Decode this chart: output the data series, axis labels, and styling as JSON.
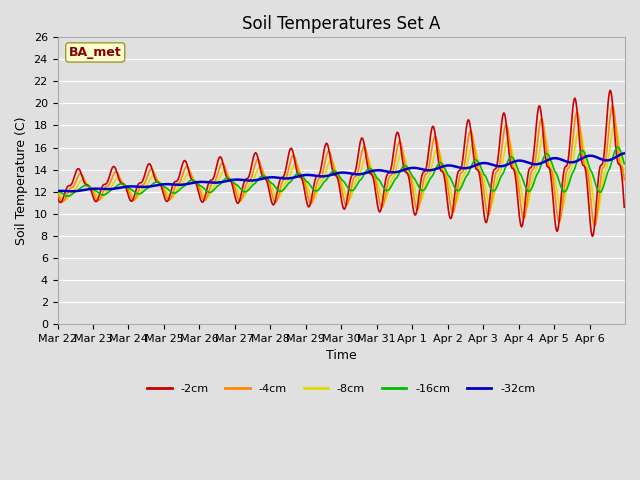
{
  "title": "Soil Temperatures Set A",
  "xlabel": "Time",
  "ylabel": "Soil Temperature (C)",
  "ylim": [
    0,
    26
  ],
  "ba_met_label": "BA_met",
  "legend_entries": [
    "-2cm",
    "-4cm",
    "-8cm",
    "-16cm",
    "-32cm"
  ],
  "line_colors": [
    "#cc0000",
    "#ff8800",
    "#dddd00",
    "#00bb00",
    "#0000cc"
  ],
  "line_widths": [
    1.2,
    1.2,
    1.2,
    1.2,
    1.8
  ],
  "background_color": "#e0e0e0",
  "plot_bg_color": "#e0e0e0",
  "title_fontsize": 12,
  "axis_fontsize": 9,
  "tick_fontsize": 8,
  "x_tick_labels": [
    "Mar 22",
    "Mar 23",
    "Mar 24",
    "Mar 25",
    "Mar 26",
    "Mar 27",
    "Mar 28",
    "Mar 29",
    "Mar 30",
    "Mar 31",
    "Apr 1",
    "Apr 2",
    "Apr 3",
    "Apr 4",
    "Apr 5",
    "Apr 6"
  ],
  "n_days": 16,
  "pts_per_day": 48
}
